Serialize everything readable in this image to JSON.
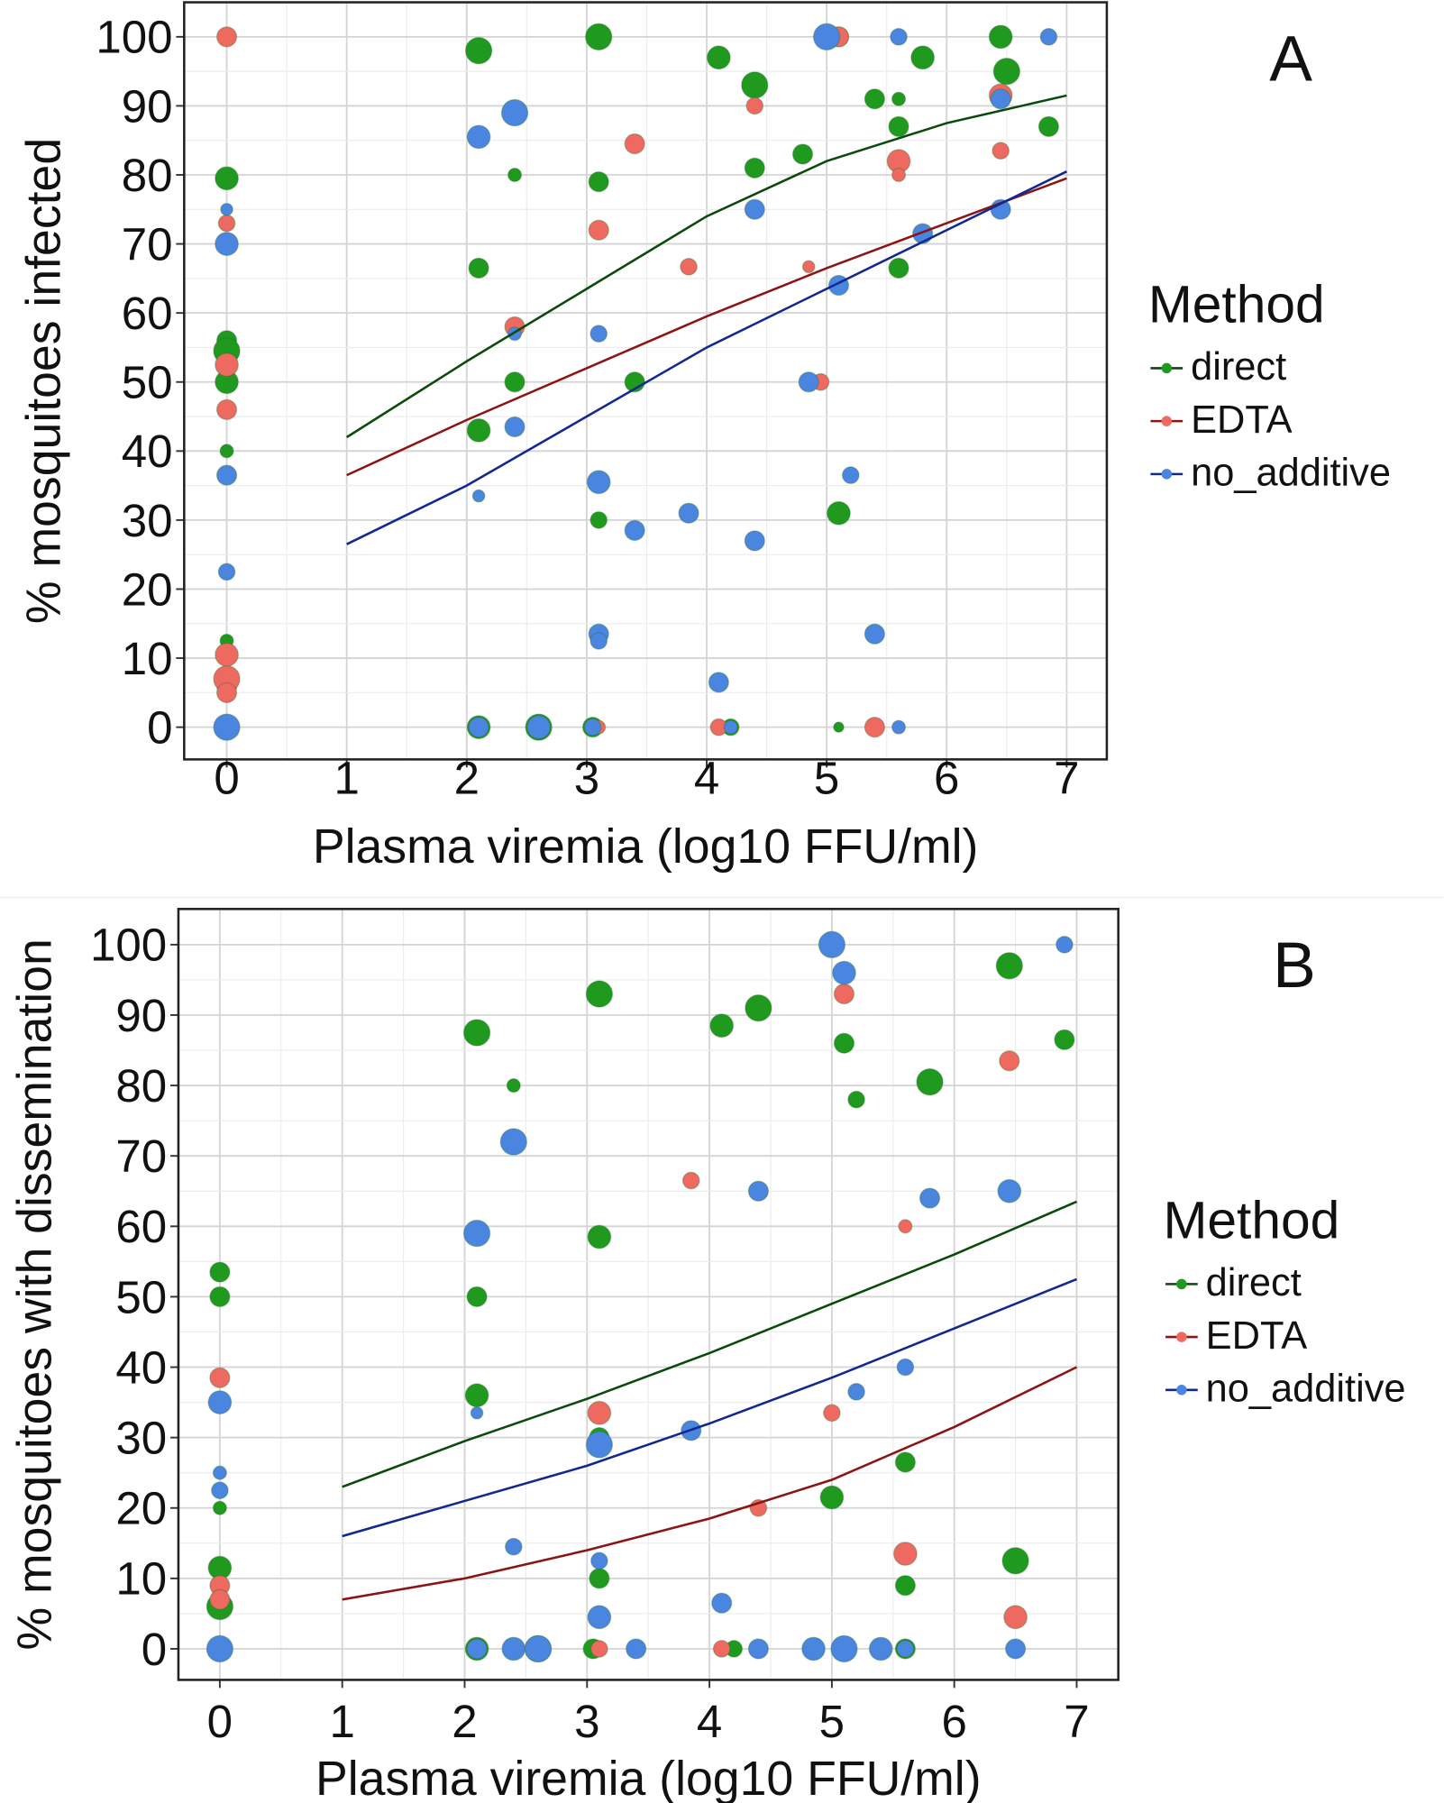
{
  "chart_data": [
    {
      "type": "scatter",
      "panel_label": "A",
      "xlabel": "Plasma viremia (log10 FFU/ml)",
      "ylabel": "% mosquitoes infected",
      "xlim": [
        -0.35,
        7.35
      ],
      "ylim": [
        -5,
        105
      ],
      "xticks": [
        "0",
        "1",
        "2",
        "3",
        "4",
        "5",
        "6",
        "7"
      ],
      "yticks": [
        "0",
        "10",
        "20",
        "30",
        "40",
        "50",
        "60",
        "70",
        "80",
        "90",
        "100"
      ],
      "grid": true,
      "legend": {
        "title": "Method",
        "placement": "right"
      },
      "series": [
        {
          "name": "direct",
          "color": "#1f9a1f",
          "line_color": "#0a4a0a",
          "points": [
            [
              2.1,
              98,
              3
            ],
            [
              3.1,
              100,
              3
            ],
            [
              4.1,
              97,
              2.5
            ],
            [
              4.4,
              93,
              3
            ],
            [
              5.1,
              100,
              2
            ],
            [
              5.8,
              97,
              2.5
            ],
            [
              6.45,
              100,
              2.5
            ],
            [
              6.5,
              95,
              3
            ],
            [
              5.4,
              91,
              2
            ],
            [
              5.6,
              91,
              1
            ],
            [
              5.6,
              87,
              2
            ],
            [
              6.85,
              87,
              2
            ],
            [
              4.8,
              83,
              2
            ],
            [
              4.4,
              81,
              2
            ],
            [
              2.4,
              80,
              1
            ],
            [
              3.1,
              79,
              2
            ],
            [
              0,
              79.5,
              2.5
            ],
            [
              2.1,
              66.5,
              2
            ],
            [
              5.6,
              66.5,
              2
            ],
            [
              0,
              56,
              2
            ],
            [
              0,
              54.5,
              3
            ],
            [
              0,
              50,
              2.5
            ],
            [
              2.4,
              50,
              2
            ],
            [
              3.4,
              50,
              2
            ],
            [
              2.1,
              43,
              2.5
            ],
            [
              0,
              40,
              1
            ],
            [
              3.1,
              30,
              1.5
            ],
            [
              5.1,
              31,
              2.5
            ],
            [
              0,
              12.5,
              1
            ],
            [
              0,
              6,
              2
            ],
            [
              2.1,
              0,
              2.5
            ],
            [
              2.6,
              0,
              3
            ],
            [
              3.05,
              0,
              2
            ],
            [
              4.2,
              0,
              1.5
            ],
            [
              5.1,
              0,
              0.5
            ]
          ],
          "fit": [
            [
              1,
              42
            ],
            [
              2,
              53
            ],
            [
              3,
              63.5
            ],
            [
              4,
              74
            ],
            [
              5,
              82
            ],
            [
              6,
              87.5
            ],
            [
              7,
              91.5
            ]
          ]
        },
        {
          "name": "EDTA",
          "color": "#ee6a60",
          "line_color": "#8b1515",
          "points": [
            [
              0,
              100,
              2
            ],
            [
              5.1,
              100,
              2
            ],
            [
              4.4,
              90,
              1.5
            ],
            [
              6.45,
              91.5,
              2.5
            ],
            [
              3.4,
              84.5,
              2
            ],
            [
              5.6,
              82,
              2.5
            ],
            [
              5.6,
              80,
              1
            ],
            [
              6.45,
              83.5,
              1.5
            ],
            [
              0,
              73,
              1.5
            ],
            [
              3.1,
              72,
              2
            ],
            [
              3.85,
              66.7,
              1.5
            ],
            [
              4.85,
              66.7,
              0.8
            ],
            [
              2.4,
              58,
              2
            ],
            [
              0,
              52.5,
              2.5
            ],
            [
              4.95,
              50,
              1.5
            ],
            [
              0,
              46,
              2
            ],
            [
              0,
              10.5,
              2.5
            ],
            [
              0,
              7,
              3
            ],
            [
              0,
              5,
              2
            ],
            [
              3.1,
              0,
              1
            ],
            [
              4.1,
              0,
              1.5
            ],
            [
              5.4,
              0,
              2
            ]
          ],
          "fit": [
            [
              1,
              36.5
            ],
            [
              2,
              44.5
            ],
            [
              3,
              52
            ],
            [
              4,
              59.5
            ],
            [
              5,
              66.5
            ],
            [
              6,
              73
            ],
            [
              7,
              79.5
            ]
          ]
        },
        {
          "name": "no_additive",
          "color": "#4a86e0",
          "line_color": "#13288f",
          "points": [
            [
              5,
              100,
              3
            ],
            [
              5.6,
              100,
              1.5
            ],
            [
              6.85,
              100,
              1.5
            ],
            [
              2.4,
              89,
              3
            ],
            [
              2.1,
              85.5,
              2.5
            ],
            [
              6.45,
              91,
              2
            ],
            [
              4.4,
              75,
              2
            ],
            [
              6.45,
              75,
              2
            ],
            [
              5.8,
              71.5,
              2
            ],
            [
              0,
              75,
              0.8
            ],
            [
              0,
              70,
              2.5
            ],
            [
              5.1,
              64,
              2
            ],
            [
              2.4,
              57,
              1
            ],
            [
              3.1,
              57,
              1.5
            ],
            [
              4.85,
              50,
              2
            ],
            [
              2.4,
              43.5,
              2
            ],
            [
              0,
              36.5,
              2
            ],
            [
              5.2,
              36.5,
              1.5
            ],
            [
              2.1,
              33.5,
              0.8
            ],
            [
              3.1,
              35.5,
              2.5
            ],
            [
              3.85,
              31,
              2
            ],
            [
              3.4,
              28.5,
              2
            ],
            [
              4.4,
              27,
              2
            ],
            [
              0,
              22.5,
              1.5
            ],
            [
              3.1,
              13.5,
              2
            ],
            [
              3.1,
              12.5,
              1.5
            ],
            [
              5.4,
              13.5,
              2
            ],
            [
              4.1,
              6.5,
              2
            ],
            [
              0,
              0,
              3
            ],
            [
              2.1,
              0,
              2
            ],
            [
              2.6,
              0,
              2.5
            ],
            [
              3.05,
              0,
              1.5
            ],
            [
              4.2,
              0,
              1
            ],
            [
              5.6,
              0,
              1
            ]
          ],
          "fit": [
            [
              1,
              26.5
            ],
            [
              2,
              35
            ],
            [
              3,
              45
            ],
            [
              4,
              55
            ],
            [
              5,
              63.5
            ],
            [
              6,
              72
            ],
            [
              7,
              80.5
            ]
          ]
        }
      ]
    },
    {
      "type": "scatter",
      "panel_label": "B",
      "xlabel": "Plasma viremia (log10 FFU/ml)",
      "ylabel": "% mosquitoes with dissemination",
      "xlim": [
        -0.35,
        7.35
      ],
      "ylim": [
        -5,
        105
      ],
      "xticks": [
        "0",
        "1",
        "2",
        "3",
        "4",
        "5",
        "6",
        "7"
      ],
      "yticks": [
        "0",
        "10",
        "20",
        "30",
        "40",
        "50",
        "60",
        "70",
        "80",
        "90",
        "100"
      ],
      "grid": true,
      "legend": {
        "title": "Method",
        "placement": "right"
      },
      "series": [
        {
          "name": "direct",
          "color": "#1f9a1f",
          "line_color": "#0a4a0a",
          "points": [
            [
              3.1,
              93,
              3
            ],
            [
              4.1,
              88.5,
              2.5
            ],
            [
              4.4,
              91,
              3
            ],
            [
              2.1,
              87.5,
              3
            ],
            [
              6.45,
              97,
              3
            ],
            [
              6.9,
              86.5,
              2
            ],
            [
              5.1,
              86,
              2
            ],
            [
              5.2,
              78,
              1.5
            ],
            [
              5.8,
              80.5,
              3
            ],
            [
              2.4,
              80,
              1
            ],
            [
              3.1,
              58.5,
              2.5
            ],
            [
              0,
              53.5,
              2
            ],
            [
              0,
              50,
              2
            ],
            [
              2.1,
              50,
              2
            ],
            [
              2.1,
              36,
              2.5
            ],
            [
              3.1,
              30,
              2
            ],
            [
              5.6,
              26.5,
              2
            ],
            [
              5,
              21.5,
              2.5
            ],
            [
              0,
              20,
              1
            ],
            [
              0,
              11.5,
              2.5
            ],
            [
              0,
              6,
              3
            ],
            [
              3.1,
              10,
              2
            ],
            [
              5.6,
              9,
              2
            ],
            [
              6.5,
              12.5,
              3
            ],
            [
              2.1,
              0,
              2.5
            ],
            [
              2.6,
              0,
              3
            ],
            [
              3.05,
              0,
              2
            ],
            [
              4.2,
              0,
              1.5
            ],
            [
              5.6,
              0,
              2
            ]
          ],
          "fit": [
            [
              1,
              23
            ],
            [
              2,
              29.5
            ],
            [
              3,
              35.5
            ],
            [
              4,
              42
            ],
            [
              5,
              49
            ],
            [
              6,
              56
            ],
            [
              7,
              63.5
            ]
          ]
        },
        {
          "name": "EDTA",
          "color": "#ee6a60",
          "line_color": "#8b1515",
          "points": [
            [
              5.1,
              93,
              2
            ],
            [
              6.45,
              83.5,
              2
            ],
            [
              3.85,
              66.5,
              1.5
            ],
            [
              5.6,
              60,
              1
            ],
            [
              0,
              38.5,
              2
            ],
            [
              3.1,
              33.5,
              2.5
            ],
            [
              5,
              33.5,
              1.5
            ],
            [
              4.4,
              20,
              1.5
            ],
            [
              5.6,
              13.5,
              2.5
            ],
            [
              0,
              9,
              2
            ],
            [
              0,
              7,
              2
            ],
            [
              6.5,
              4.5,
              2.5
            ],
            [
              3.1,
              0,
              1.5
            ],
            [
              4.1,
              0,
              1.5
            ]
          ],
          "fit": [
            [
              1,
              7
            ],
            [
              2,
              10
            ],
            [
              3,
              14
            ],
            [
              4,
              18.5
            ],
            [
              5,
              24
            ],
            [
              6,
              31.5
            ],
            [
              7,
              40
            ]
          ]
        },
        {
          "name": "no_additive",
          "color": "#4a86e0",
          "line_color": "#13288f",
          "points": [
            [
              5,
              100,
              3
            ],
            [
              6.9,
              100,
              1.5
            ],
            [
              5.1,
              96,
              2.5
            ],
            [
              2.4,
              72,
              3
            ],
            [
              4.4,
              65,
              2
            ],
            [
              5.8,
              64,
              2
            ],
            [
              6.45,
              65,
              2.5
            ],
            [
              2.1,
              59,
              3
            ],
            [
              5.6,
              40,
              1.5
            ],
            [
              5.2,
              36.5,
              1.5
            ],
            [
              0,
              35,
              2.5
            ],
            [
              2.1,
              33.5,
              0.8
            ],
            [
              3.1,
              29,
              3
            ],
            [
              3.85,
              31,
              2
            ],
            [
              0,
              25,
              1
            ],
            [
              0,
              22.5,
              1.5
            ],
            [
              2.4,
              14.5,
              1.5
            ],
            [
              3.1,
              12.5,
              1.5
            ],
            [
              4.1,
              6.5,
              2
            ],
            [
              3.1,
              4.5,
              2.5
            ],
            [
              0,
              0,
              3
            ],
            [
              2.1,
              0,
              2
            ],
            [
              2.4,
              0,
              2.5
            ],
            [
              2.6,
              0,
              3
            ],
            [
              3.4,
              0,
              2
            ],
            [
              4.4,
              0,
              2
            ],
            [
              4.85,
              0,
              2.5
            ],
            [
              5.1,
              0,
              3
            ],
            [
              5.4,
              0,
              2.5
            ],
            [
              5.6,
              0,
              1.5
            ],
            [
              6.5,
              0,
              2
            ]
          ],
          "fit": [
            [
              1,
              16
            ],
            [
              2,
              21
            ],
            [
              3,
              26
            ],
            [
              4,
              32
            ],
            [
              5,
              38.5
            ],
            [
              6,
              45.5
            ],
            [
              7,
              52.5
            ]
          ]
        }
      ]
    }
  ]
}
